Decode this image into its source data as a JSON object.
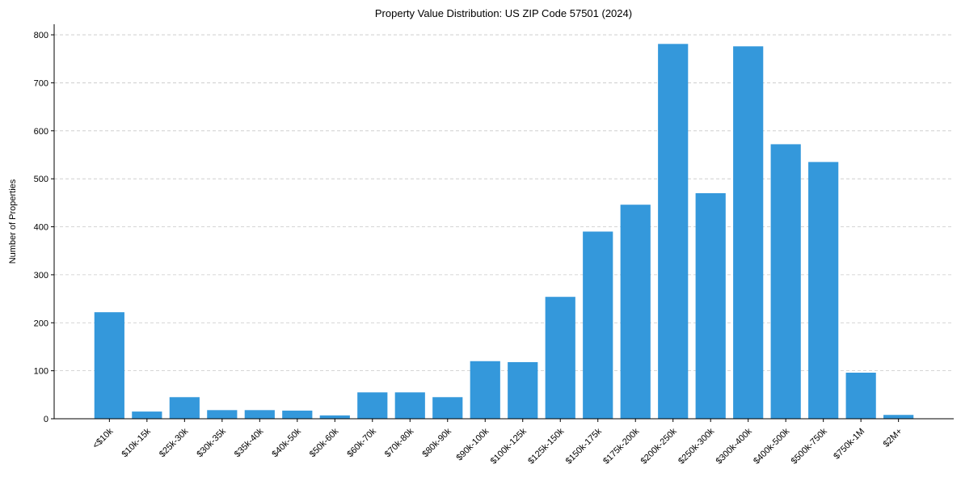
{
  "chart_data": {
    "type": "bar",
    "title": "Property Value Distribution: US ZIP Code 57501 (2024)",
    "xlabel": "",
    "ylabel": "Number of Properties",
    "ylim": [
      0,
      822
    ],
    "yticks": [
      0,
      100,
      200,
      300,
      400,
      500,
      600,
      700,
      800
    ],
    "grid": "y-dashed",
    "bar_color": "#3498db",
    "categories": [
      "<$10k",
      "$10k-15k",
      "$25k-30k",
      "$30k-35k",
      "$35k-40k",
      "$40k-50k",
      "$50k-60k",
      "$60k-70k",
      "$70k-80k",
      "$80k-90k",
      "$90k-100k",
      "$100k-125k",
      "$125k-150k",
      "$150k-175k",
      "$175k-200k",
      "$200k-250k",
      "$250k-300k",
      "$300k-400k",
      "$400k-500k",
      "$500k-750k",
      "$750k-1M",
      "$2M+"
    ],
    "values": [
      222,
      15,
      45,
      18,
      18,
      17,
      7,
      55,
      55,
      45,
      120,
      118,
      254,
      390,
      446,
      781,
      470,
      776,
      572,
      535,
      96,
      8
    ]
  }
}
